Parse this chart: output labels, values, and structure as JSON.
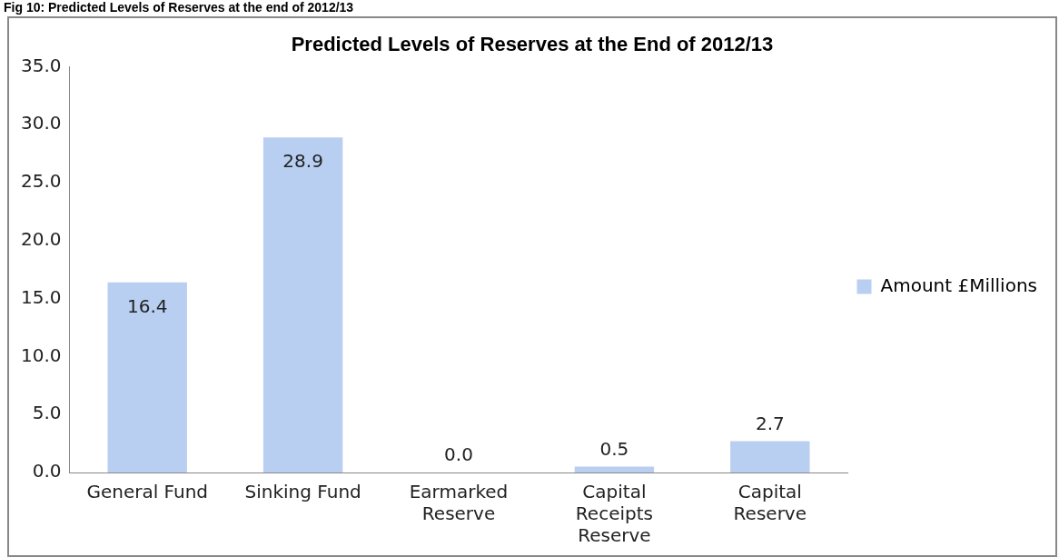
{
  "chart_data": {
    "type": "bar",
    "title": "Predicted Levels of Reserves at the End of 2012/13",
    "annotations": [
      "Fig 10: Predicted Levels of Reserves at the end of 2012/13"
    ],
    "categories": [
      "General Fund",
      "Sinking Fund",
      "Earmarked Reserve",
      "Capital Receipts Reserve",
      "Capital Reserve"
    ],
    "series": [
      {
        "name": "Amount £Millions",
        "color": "#b8cff2",
        "values": [
          16.4,
          28.9,
          0.0,
          0.5,
          2.7
        ],
        "value_labels": [
          "16.4",
          "28.9",
          "0.0",
          "0.5",
          "2.7"
        ]
      }
    ],
    "ylim": [
      0,
      35
    ],
    "yticks": [
      {
        "value": 0,
        "label": "0.0"
      },
      {
        "value": 5,
        "label": "5.0"
      },
      {
        "value": 10,
        "label": "10.0"
      },
      {
        "value": 15,
        "label": "15.0"
      },
      {
        "value": 20,
        "label": "20.0"
      },
      {
        "value": 25,
        "label": "25.0"
      },
      {
        "value": 30,
        "label": "30.0"
      },
      {
        "value": 35,
        "label": "35.0"
      }
    ],
    "legend": "right",
    "grid": false
  }
}
